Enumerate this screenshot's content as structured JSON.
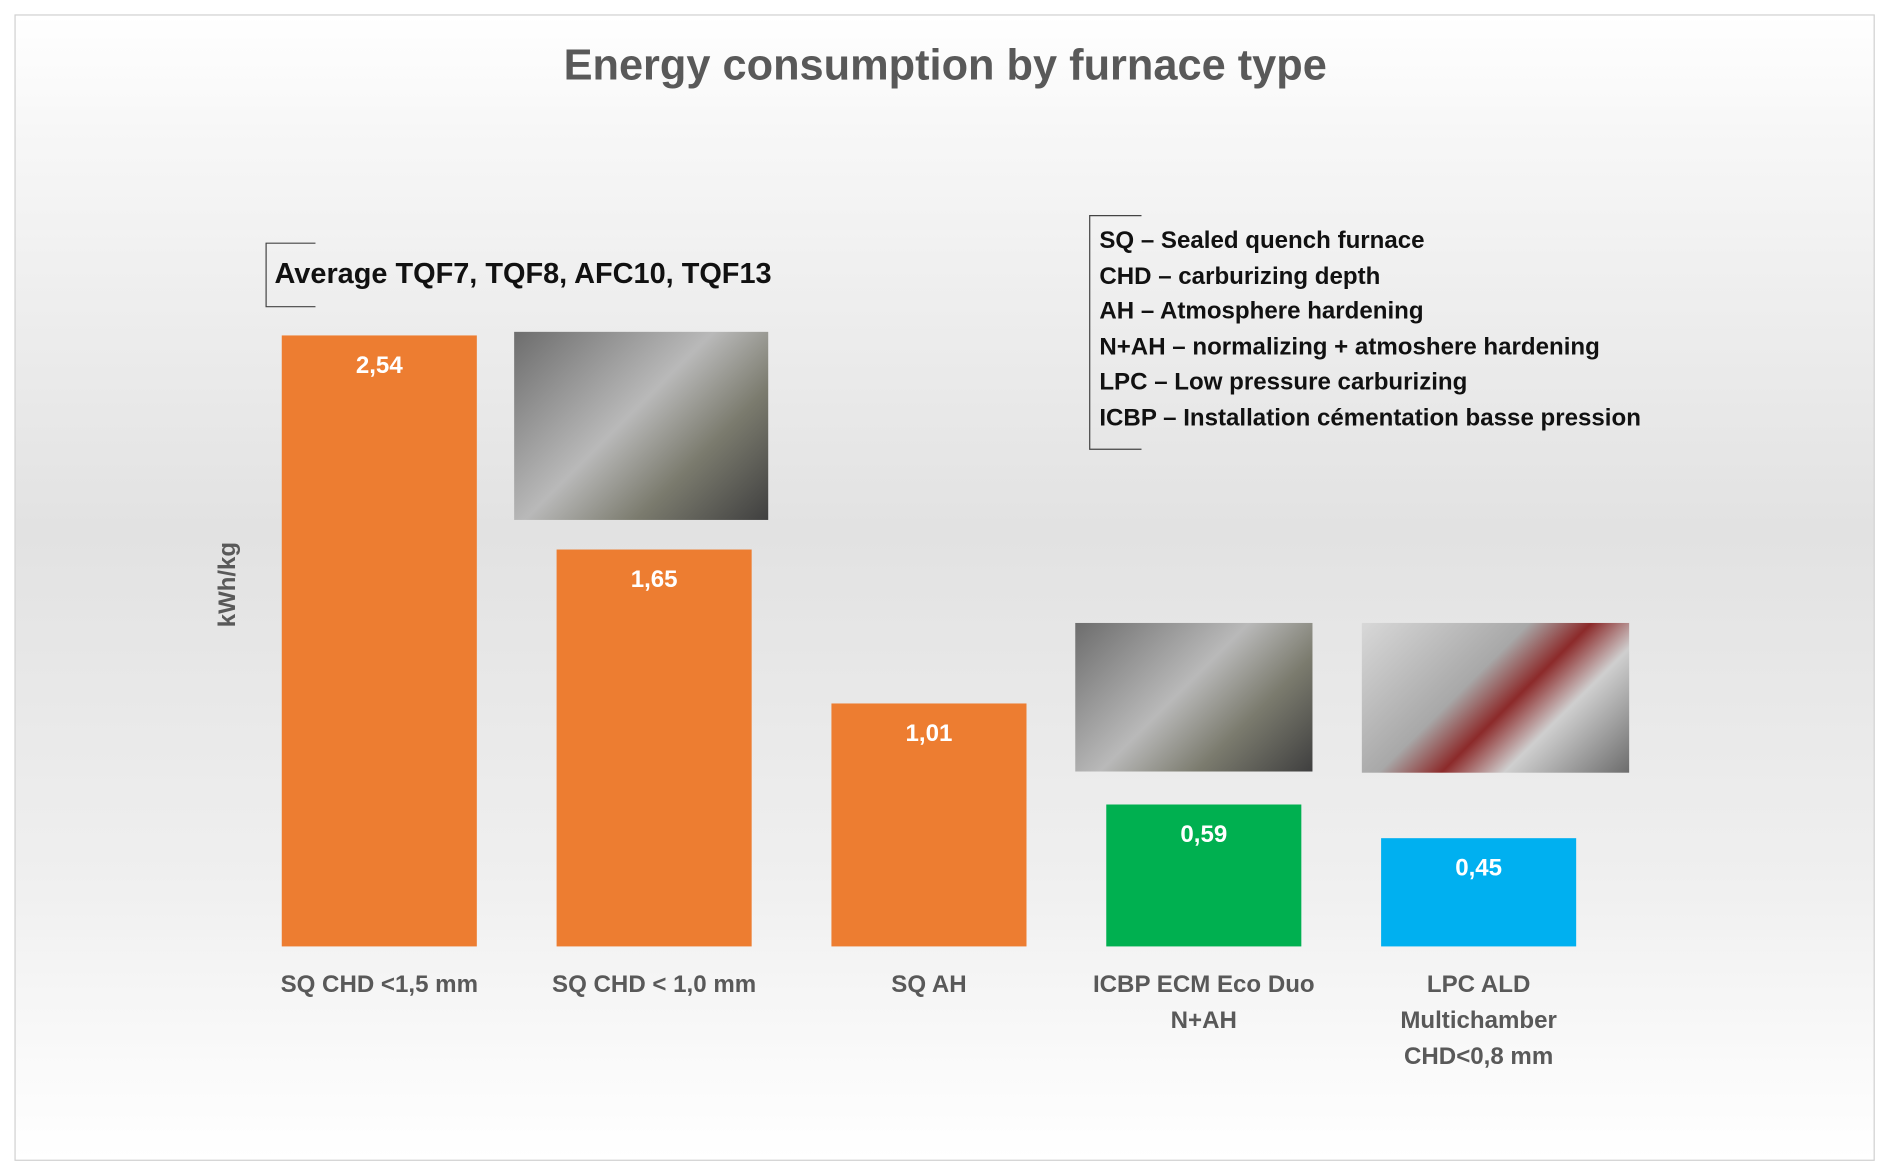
{
  "chart_data": {
    "type": "bar",
    "title": "Energy consumption by furnace type",
    "y_label": "kWh/kg",
    "categories": [
      "SQ  CHD <1,5 mm",
      "SQ  CHD < 1,0 mm",
      "SQ  AH",
      "ICBP ECM Eco Duo\nN+AH",
      "LPC ALD\nMultichamber\nCHD<0,8 mm"
    ],
    "values": [
      2.54,
      1.65,
      1.01,
      0.59,
      0.45
    ],
    "value_labels": [
      "2,54",
      "1,65",
      "1,01",
      "0,59",
      "0,45"
    ],
    "colors": [
      "#ed7d31",
      "#ed7d31",
      "#ed7d31",
      "#00b050",
      "#00b0f0"
    ],
    "annotation": "Average TQF7, TQF8, AFC10, TQF13",
    "notes": [
      "SQ – Sealed quench furnace",
      "CHD – carburizing depth",
      "AH – Atmosphere hardening",
      "N+AH – normalizing + atmoshere hardening",
      "LPC – Low pressure carburizing",
      "ICBP – Installation cémentation basse pression"
    ]
  }
}
